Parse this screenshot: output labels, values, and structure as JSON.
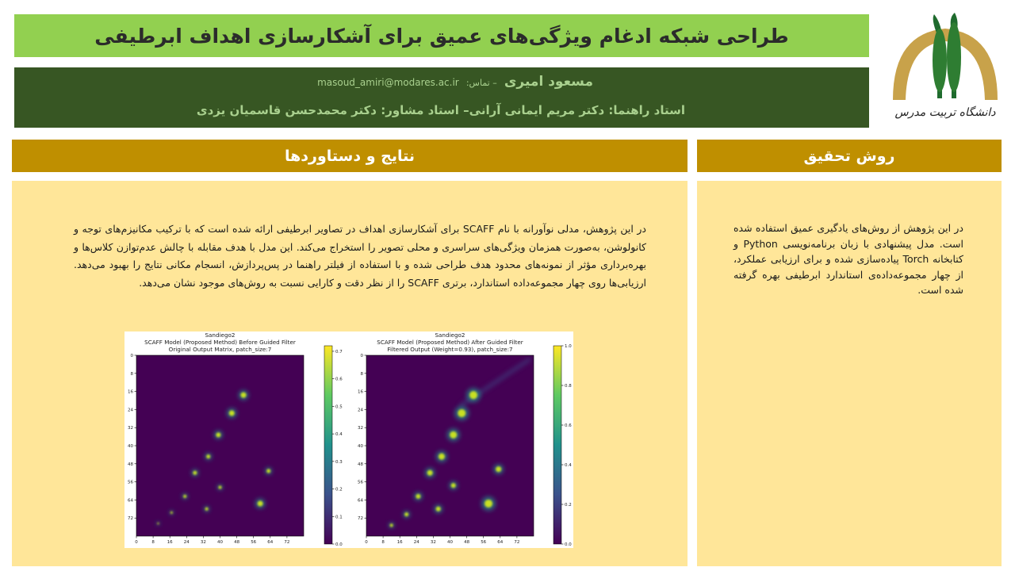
{
  "header": {
    "title": "طراحی شبکه ادغام ویژگی‌های عمیق برای آشکارسازی اهداف ابرطیفی",
    "author": "مسعود امیری",
    "contact_label": "– تماس:",
    "email": "masoud_amiri@modares.ac.ir",
    "advisors": "استاد راهنما: دکتر مریم ایمانی آرانی– استاد مشاور: دکتر محمدحسن قاسمیان یزدی"
  },
  "logo": {
    "text": "دانشگاه تربیت مدرس"
  },
  "sections": [
    {
      "heading": "نتایج و دستاوردها",
      "text": "در این پژوهش، مدلی نوآورانه با نام SCAFF برای آشکارسازی اهداف در تصاویر ابرطیفی ارائه شده است که با ترکیب مکانیزم‌های توجه و کانولوشن، به‌صورت همزمان ویژگی‌های سراسری و محلی تصویر را استخراج می‌کند. این مدل با هدف مقابله با چالش عدم‌توازن کلاس‌ها و بهره‌برداری مؤثر از نمونه‌های محدود هدف طراحی شده و با استفاده از فیلتر راهنما در پس‌پردازش، انسجام مکانی نتایج را بهبود می‌دهد. ارزیابی‌ها روی چهار مجموعه‌داده استاندارد، برتری SCAFF را از نظر دقت و کارایی نسبت به روش‌های موجود نشان می‌دهد."
    },
    {
      "heading": "روش تحقیق",
      "text": "در این پژوهش از روش‌های یادگیری عمیق استفاده شده است. مدل پیشنهادی با زبان برنامه‌نویسی Python و کتابخانه Torch پیاده‌سازی شده و برای ارزیابی عملکرد، از چهار مجموعه‌داده‌ی استاندارد ابرطیفی بهره گرفته شده است."
    }
  ],
  "figure": {
    "panels": [
      {
        "title": [
          "Sandiego2",
          "SCAFF Model (Proposed Method) Before Guided Filter",
          "Original Output Matrix, patch_size:7"
        ],
        "xlim": [
          0,
          80
        ],
        "ylim": [
          0,
          80
        ],
        "xticks": [
          0,
          8,
          16,
          24,
          32,
          40,
          48,
          56,
          64,
          72
        ],
        "yticks": [
          0,
          8,
          16,
          24,
          32,
          40,
          48,
          56,
          64,
          72
        ],
        "clim": [
          0,
          0.72
        ],
        "colorbar_ticks": [
          {
            "value": 0,
            "label": "0.0"
          },
          0.1,
          0.2,
          0.3,
          0.4,
          0.5,
          0.6,
          0.7
        ]
      },
      {
        "title": [
          "Sandiego2",
          "SCAFF Model (Proposed Method) After Guided Filter",
          "Filtered Output (Weight=0.93), patch_size:7"
        ],
        "xlim": [
          0,
          80
        ],
        "ylim": [
          0,
          80
        ],
        "xticks": [
          0,
          8,
          16,
          24,
          32,
          40,
          48,
          56,
          64,
          72
        ],
        "yticks": [
          0,
          8,
          16,
          24,
          32,
          40,
          48,
          56,
          64,
          72
        ],
        "clim": [
          0,
          1
        ],
        "colorbar_ticks": [
          {
            "value": 0,
            "label": "0.0"
          },
          0.2,
          0.4,
          0.6,
          0.8,
          {
            "value": 1,
            "label": "1.0"
          }
        ]
      }
    ]
  }
}
